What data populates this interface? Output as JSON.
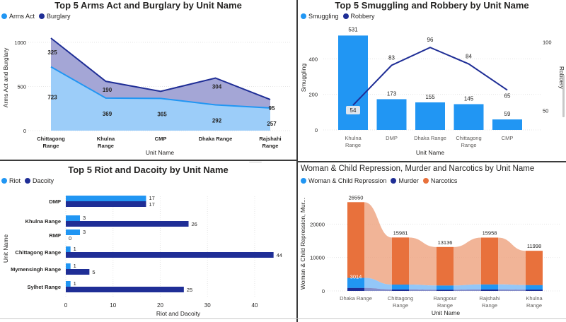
{
  "colors": {
    "light_blue": "#2196f3",
    "dark_blue": "#1f2e96",
    "orange": "#e8713c",
    "area_light": "#9ccdf9",
    "area_purple": "#a4a6d6"
  },
  "chart_data": [
    {
      "id": "c1",
      "type": "area",
      "title": "Top 5 Arms Act and Burglary by Unit Name",
      "xlabel": "Unit Name",
      "ylabel": "Arms Act and Burglary",
      "categories": [
        "Chittagong Range",
        "Khulna Range",
        "CMP",
        "Dhaka Range",
        "Rajshahi Range"
      ],
      "ylim": [
        0,
        1200
      ],
      "yticks": [
        "0",
        "500",
        "1000"
      ],
      "series": [
        {
          "name": "Arms Act",
          "values": [
            723,
            369,
            365,
            292,
            257
          ]
        },
        {
          "name": "Burglary",
          "values": [
            325,
            190,
            80,
            304,
            95
          ]
        }
      ],
      "data_labels": {
        "Arms Act": [
          "723",
          "369",
          "365",
          "292",
          "257"
        ],
        "Burglary": [
          "325",
          "190",
          "",
          "304",
          "95"
        ]
      }
    },
    {
      "id": "c2",
      "type": "bar",
      "title": "Top 5 Smuggling and Robbery by Unit Name",
      "xlabel": "Unit Name",
      "ylabel": "Smuggling",
      "ylabel_right": "Robbery",
      "categories": [
        "Khulna Range",
        "DMP",
        "Dhaka Range",
        "Chittagong Range",
        "CMP"
      ],
      "ylim": [
        0,
        580
      ],
      "yticks": [
        "0",
        "200",
        "400"
      ],
      "y2lim": [
        36,
        111
      ],
      "y2ticks": [
        "50",
        "100"
      ],
      "series": [
        {
          "name": "Smuggling",
          "values": [
            531,
            173,
            155,
            145,
            59
          ]
        },
        {
          "name": "Robbery",
          "values": [
            54,
            83,
            96,
            84,
            65
          ]
        }
      ]
    },
    {
      "id": "c3",
      "type": "bar",
      "title": "Top 5 Riot and Dacoity by Unit Name",
      "xlabel": "Riot and Dacoity",
      "ylabel": "Unit Name",
      "categories": [
        "DMP",
        "Khulna Range",
        "RMP",
        "Chittagong Range",
        "Mymensingh Range",
        "Sylhet Range"
      ],
      "xlim": [
        0,
        46
      ],
      "xticks": [
        "0",
        "10",
        "20",
        "30",
        "40"
      ],
      "series": [
        {
          "name": "Riot",
          "values": [
            17,
            3,
            3,
            1,
            1,
            1
          ]
        },
        {
          "name": "Dacoity",
          "values": [
            17,
            26,
            0,
            44,
            5,
            25
          ]
        }
      ]
    },
    {
      "id": "c4",
      "type": "area",
      "title": "Woman & Child Repression, Murder and Narcotics by Unit Name",
      "xlabel": "Unit Name",
      "ylabel": "Woman & Child Repression, Mur...",
      "categories": [
        "Dhaka Range",
        "Chittagong Range",
        "Rangpour Range",
        "Rajshahi Range",
        "Khulna Range"
      ],
      "ylim": [
        0,
        30000
      ],
      "yticks": [
        "0",
        "10000",
        "20000"
      ],
      "series": [
        {
          "name": "Woman & Child Repression",
          "values": [
            3014,
            1450,
            1250,
            1500,
            1350
          ]
        },
        {
          "name": "Murder",
          "values": [
            900,
            450,
            380,
            450,
            400
          ]
        },
        {
          "name": "Narcotics",
          "values": [
            22636,
            14081,
            11506,
            14008,
            10248
          ]
        }
      ],
      "totals": [
        "26550",
        "15981",
        "13136",
        "15958",
        "11998"
      ],
      "inner_label": "3014"
    }
  ]
}
